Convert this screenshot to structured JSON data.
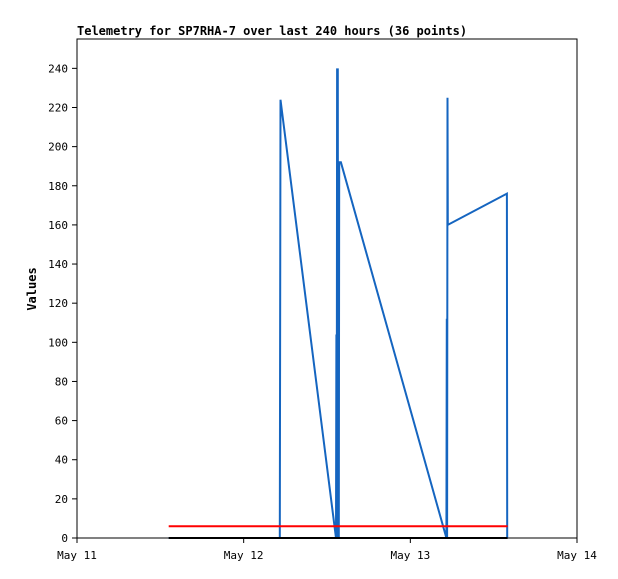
{
  "chart_data": {
    "type": "line",
    "title": "Telemetry for SP7RHA-7 over last 240 hours (36 points)",
    "xlabel": "",
    "ylabel": "Values",
    "xlim": [
      0,
      72
    ],
    "ylim": [
      0,
      255
    ],
    "x_ticks": [
      {
        "value": 0,
        "label": "May 11"
      },
      {
        "value": 24,
        "label": "May 12"
      },
      {
        "value": 48,
        "label": "May 13"
      },
      {
        "value": 72,
        "label": "May 14"
      }
    ],
    "y_ticks": [
      0,
      20,
      40,
      60,
      80,
      100,
      120,
      140,
      160,
      180,
      200,
      220,
      240
    ],
    "grid": false,
    "series": [
      {
        "color": "#1565c0",
        "x": [
          13.2,
          29.2,
          29.3,
          37.3,
          37.35,
          37.4,
          37.45,
          37.5,
          37.55,
          37.6,
          37.65,
          37.7,
          37.75,
          38.0,
          53.2,
          53.25,
          53.3,
          53.35,
          53.4,
          61.9,
          61.95
        ],
        "y": [
          0,
          0,
          224,
          0,
          104,
          0,
          240,
          0,
          240,
          0,
          192,
          0,
          192,
          192,
          0,
          112,
          0,
          225,
          160,
          176,
          0
        ]
      },
      {
        "color": "#ff0000",
        "x": [
          13.2,
          62.0
        ],
        "y": [
          6,
          6
        ]
      },
      {
        "color": "#000000",
        "x": [
          13.2,
          62.0
        ],
        "y": [
          0,
          0
        ]
      }
    ]
  }
}
